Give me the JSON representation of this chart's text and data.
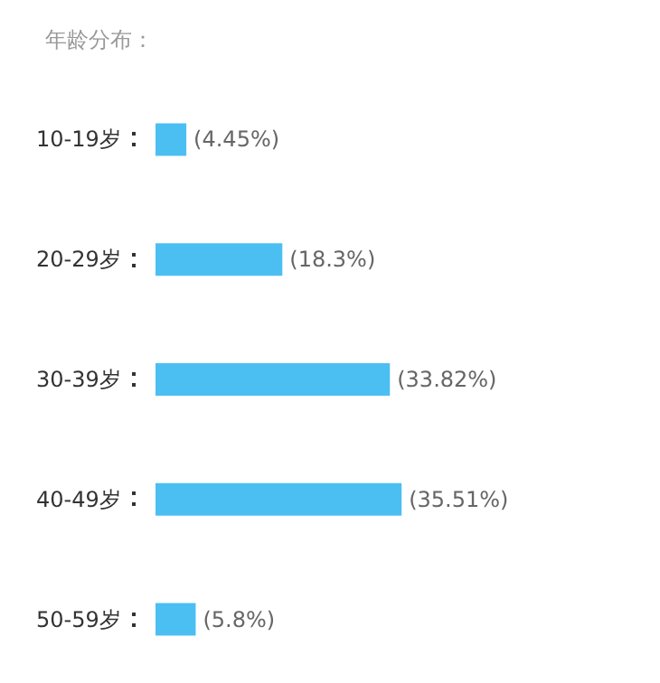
{
  "chart_data": {
    "type": "bar",
    "orientation": "horizontal",
    "title": "年龄分布：",
    "categories": [
      "10-19岁",
      "20-29岁",
      "30-39岁",
      "40-49岁",
      "50-59岁"
    ],
    "values": [
      4.45,
      18.3,
      33.82,
      35.51,
      5.8
    ],
    "value_labels": [
      "(4.45%)",
      "(18.3%)",
      "(33.82%)",
      "(35.51%)",
      "(5.8%)"
    ],
    "color": "#4bbff2"
  }
}
